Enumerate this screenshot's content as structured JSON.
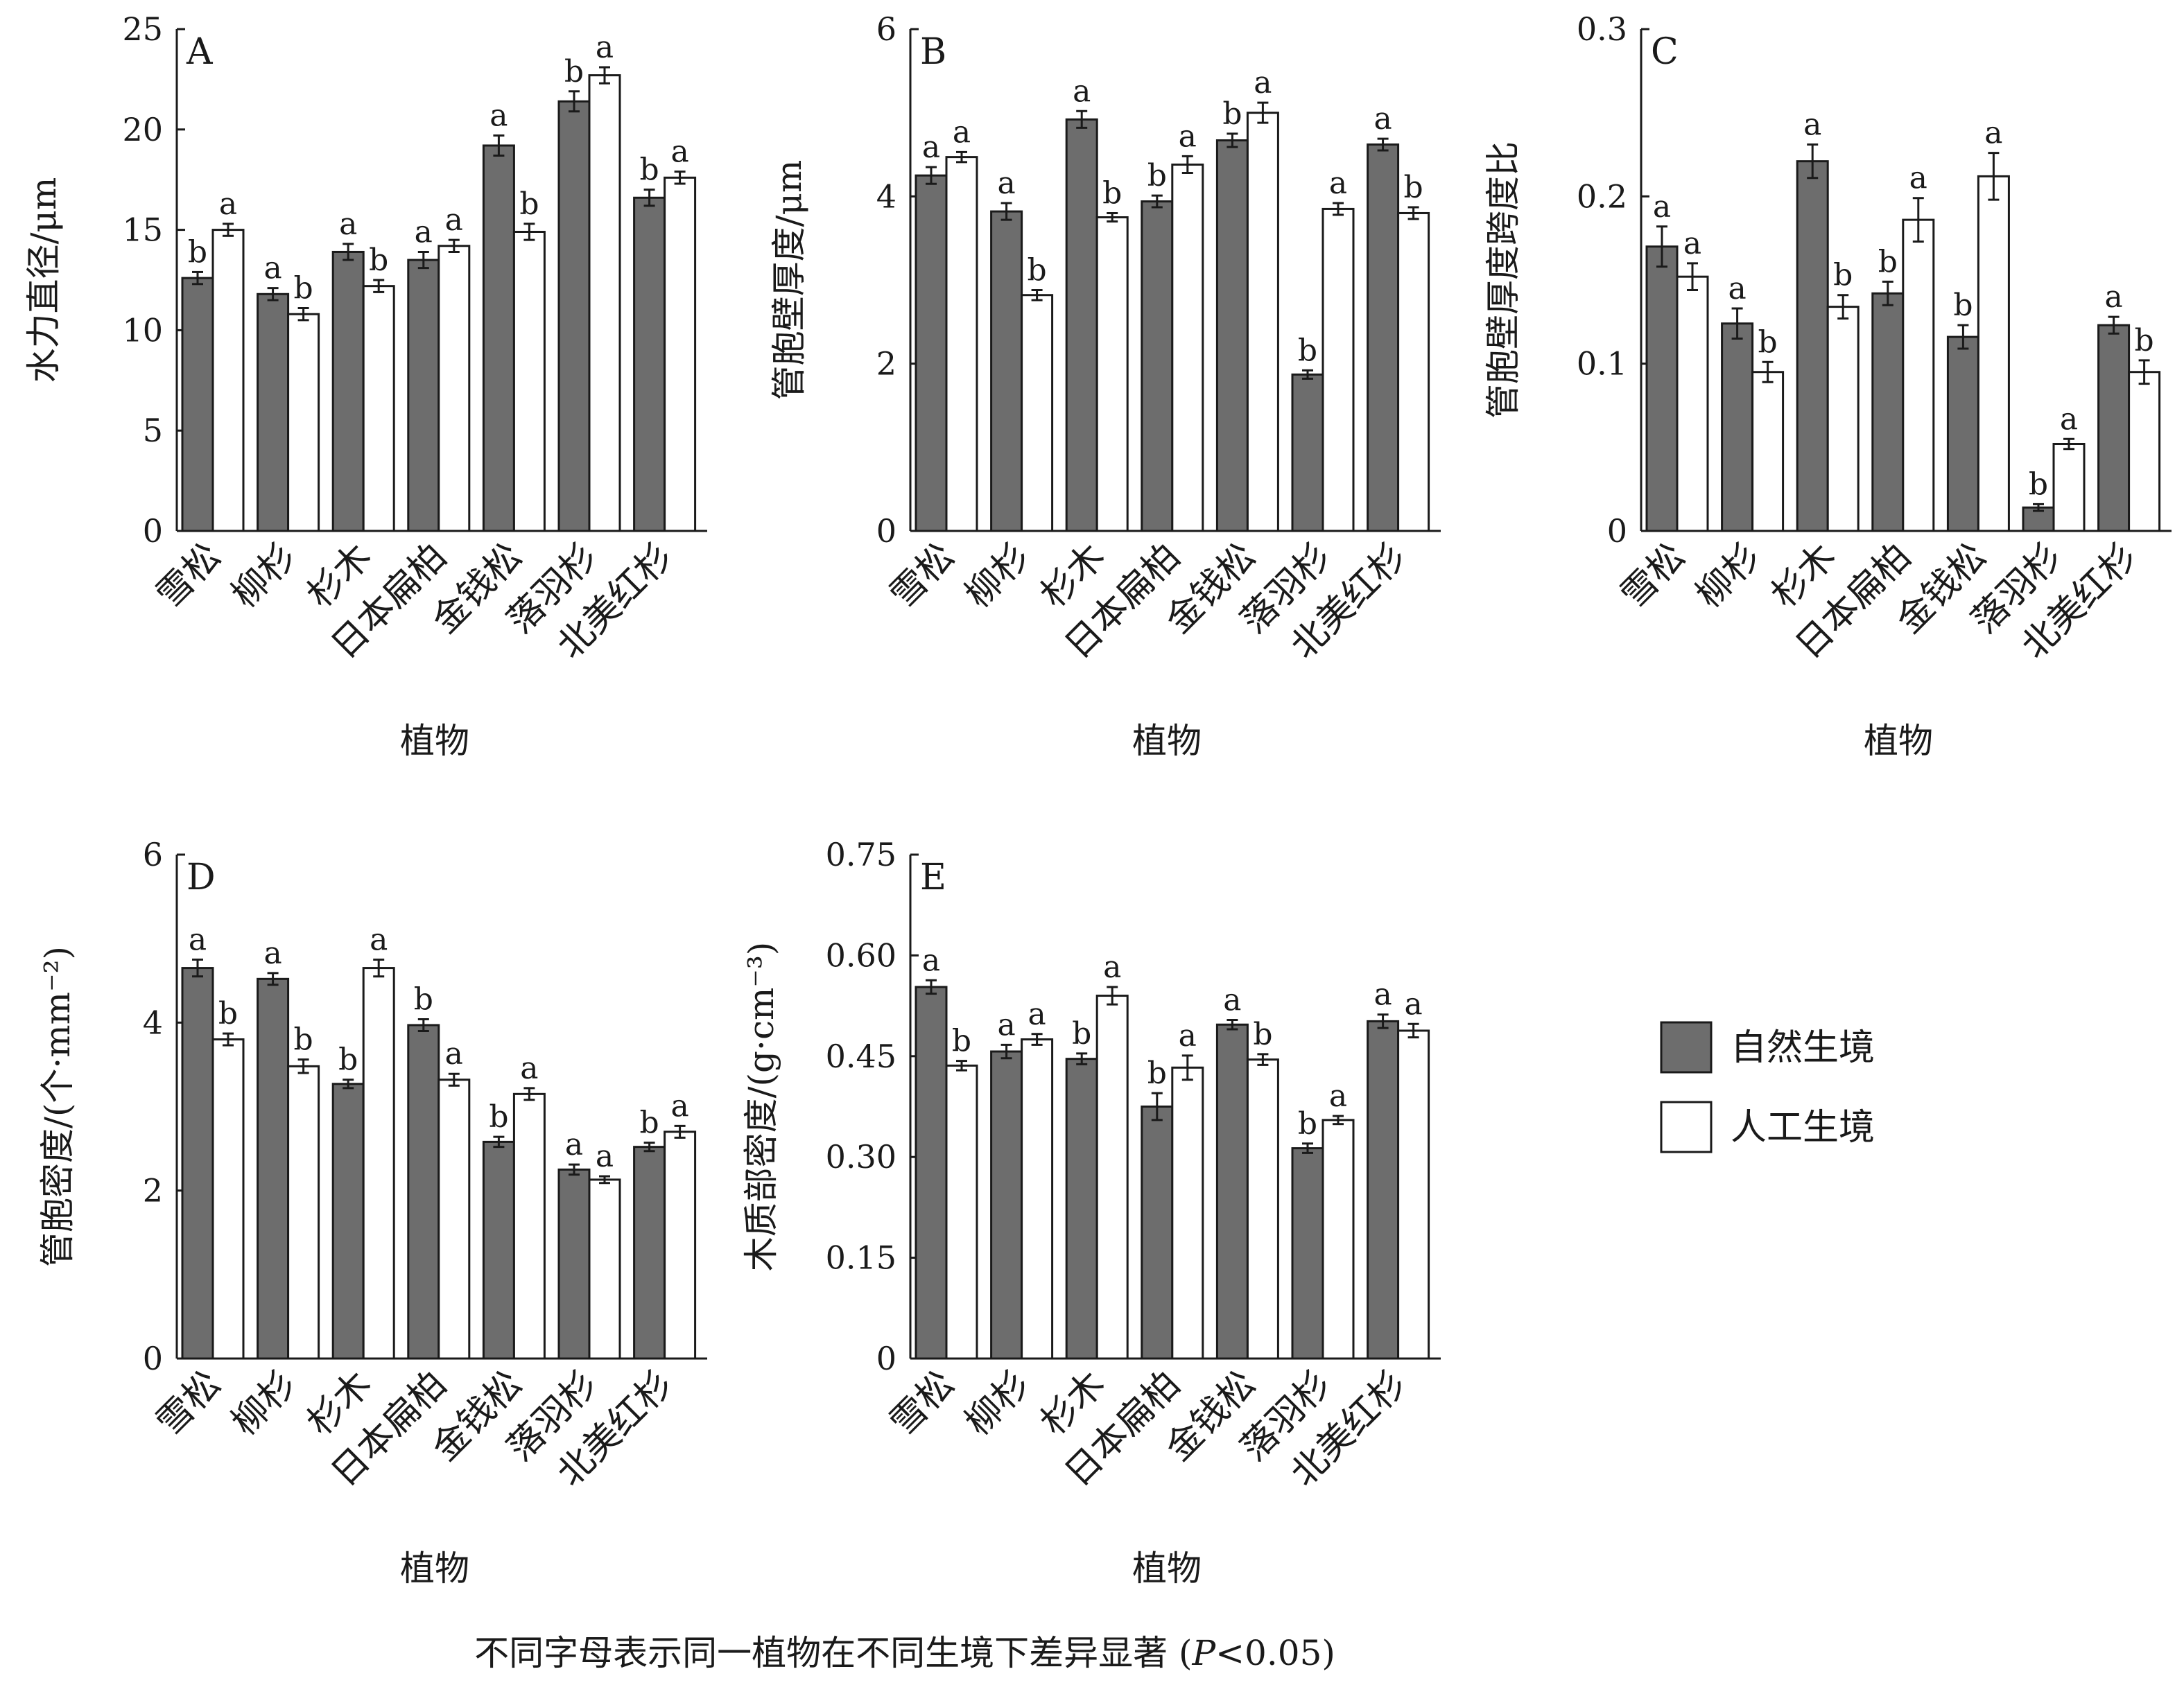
{
  "categories": [
    "雪松",
    "柳杉",
    "杉木",
    "日本扁柏",
    "金钱松",
    "落羽杉",
    "北美红杉"
  ],
  "x_axis_title": "植物",
  "legend": {
    "items": [
      {
        "label": "自然生境",
        "color": "#6d6d6d"
      },
      {
        "label": "人工生境",
        "color": "#ffffff"
      }
    ]
  },
  "footnote": {
    "text": "不同字母表示同一植物在不同生境下差异显著 (",
    "italic": "P",
    "rest": "<0.05)"
  },
  "colors": {
    "natural": "#6d6d6d",
    "artificial": "#ffffff",
    "stroke": "#1a1a1a"
  },
  "chart_data": [
    {
      "id": "A",
      "type": "bar",
      "panel": "A",
      "ylabel": "水力直径/μm",
      "ylim": [
        0,
        25
      ],
      "yticks": [
        "0",
        "5",
        "10",
        "15",
        "20",
        "25"
      ],
      "series": [
        {
          "name": "自然生境",
          "values": [
            12.6,
            11.8,
            13.9,
            13.5,
            19.2,
            21.4,
            16.6
          ],
          "errors": [
            0.3,
            0.3,
            0.4,
            0.4,
            0.5,
            0.5,
            0.4
          ],
          "letters": [
            "b",
            "a",
            "a",
            "a",
            "a",
            "b",
            "b"
          ]
        },
        {
          "name": "人工生境",
          "values": [
            15.0,
            10.8,
            12.2,
            14.2,
            14.9,
            22.7,
            17.6
          ],
          "errors": [
            0.3,
            0.3,
            0.3,
            0.3,
            0.4,
            0.4,
            0.3
          ],
          "letters": [
            "a",
            "b",
            "b",
            "a",
            "b",
            "a",
            "a"
          ]
        }
      ]
    },
    {
      "id": "B",
      "type": "bar",
      "panel": "B",
      "ylabel": "管胞壁厚度/μm",
      "ylim": [
        0,
        6
      ],
      "yticks": [
        "0",
        "2",
        "4",
        "6"
      ],
      "series": [
        {
          "name": "自然生境",
          "values": [
            4.25,
            3.82,
            4.92,
            3.94,
            4.67,
            1.87,
            4.62
          ],
          "errors": [
            0.1,
            0.1,
            0.1,
            0.07,
            0.08,
            0.05,
            0.07
          ],
          "letters": [
            "a",
            "a",
            "a",
            "b",
            "b",
            "b",
            "a"
          ]
        },
        {
          "name": "人工生境",
          "values": [
            4.47,
            2.82,
            3.75,
            4.38,
            5.0,
            3.85,
            3.8
          ],
          "errors": [
            0.06,
            0.06,
            0.05,
            0.1,
            0.12,
            0.07,
            0.07
          ],
          "letters": [
            "a",
            "b",
            "b",
            "a",
            "a",
            "a",
            "b"
          ]
        }
      ]
    },
    {
      "id": "C",
      "type": "bar",
      "panel": "C",
      "ylabel": "管胞壁厚度跨度比",
      "ylim": [
        0,
        0.3
      ],
      "yticks": [
        "0",
        "0.1",
        "0.2",
        "0.3"
      ],
      "series": [
        {
          "name": "自然生境",
          "values": [
            0.17,
            0.124,
            0.221,
            0.142,
            0.116,
            0.014,
            0.123
          ],
          "errors": [
            0.012,
            0.009,
            0.01,
            0.007,
            0.007,
            0.002,
            0.005
          ],
          "letters": [
            "a",
            "a",
            "a",
            "b",
            "b",
            "b",
            "a"
          ]
        },
        {
          "name": "人工生境",
          "values": [
            0.152,
            0.095,
            0.134,
            0.186,
            0.212,
            0.052,
            0.095
          ],
          "errors": [
            0.008,
            0.006,
            0.007,
            0.013,
            0.014,
            0.003,
            0.007
          ],
          "letters": [
            "a",
            "b",
            "b",
            "a",
            "a",
            "a",
            "b"
          ]
        }
      ]
    },
    {
      "id": "D",
      "type": "bar",
      "panel": "D",
      "ylabel": "管胞密度/(个·mm⁻²)",
      "ylim": [
        0,
        6
      ],
      "yticks": [
        "0",
        "2",
        "4",
        "6"
      ],
      "series": [
        {
          "name": "自然生境",
          "values": [
            4.65,
            4.52,
            3.27,
            3.97,
            2.58,
            2.25,
            2.52
          ],
          "errors": [
            0.1,
            0.07,
            0.05,
            0.07,
            0.06,
            0.06,
            0.05
          ],
          "letters": [
            "a",
            "a",
            "b",
            "b",
            "b",
            "a",
            "b"
          ]
        },
        {
          "name": "人工生境",
          "values": [
            3.8,
            3.48,
            4.65,
            3.32,
            3.15,
            2.13,
            2.7
          ],
          "errors": [
            0.07,
            0.08,
            0.1,
            0.07,
            0.07,
            0.04,
            0.07
          ],
          "letters": [
            "b",
            "b",
            "a",
            "a",
            "a",
            "a",
            "a"
          ]
        }
      ]
    },
    {
      "id": "E",
      "type": "bar",
      "panel": "E",
      "ylabel": "木质部密度/(g·cm⁻³)",
      "ylim": [
        0,
        0.75
      ],
      "yticks": [
        "0",
        "0.15",
        "0.30",
        "0.45",
        "0.60",
        "0.75"
      ],
      "series": [
        {
          "name": "自然生境",
          "values": [
            0.553,
            0.457,
            0.446,
            0.375,
            0.497,
            0.313,
            0.502
          ],
          "errors": [
            0.01,
            0.01,
            0.008,
            0.02,
            0.007,
            0.007,
            0.01
          ],
          "letters": [
            "a",
            "a",
            "b",
            "b",
            "a",
            "b",
            "a"
          ]
        },
        {
          "name": "人工生境",
          "values": [
            0.436,
            0.475,
            0.54,
            0.433,
            0.445,
            0.355,
            0.488
          ],
          "errors": [
            0.007,
            0.008,
            0.013,
            0.018,
            0.008,
            0.006,
            0.01
          ],
          "letters": [
            "b",
            "a",
            "a",
            "a",
            "b",
            "a",
            "a"
          ]
        }
      ]
    }
  ]
}
